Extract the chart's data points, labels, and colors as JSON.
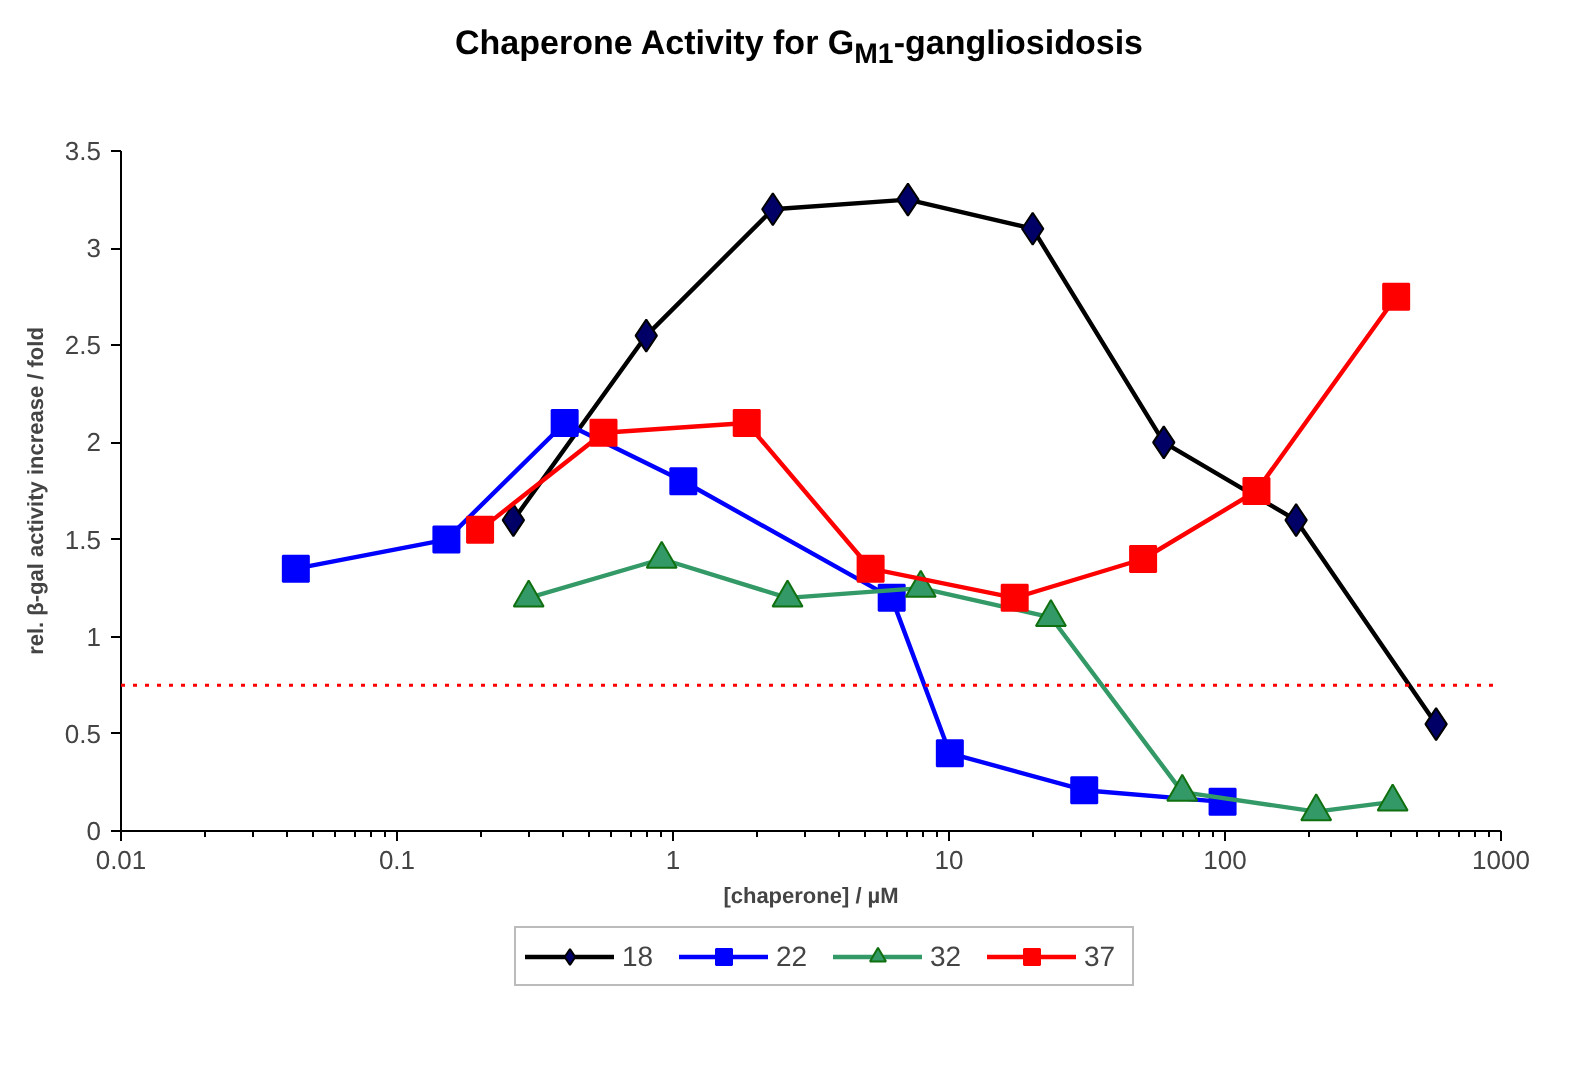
{
  "chart_data": {
    "type": "line",
    "title": "Chaperone Activity for G$_{M1}$-gangliosidosis",
    "xlabel": "[chaperone] / µM",
    "ylabel": "rel. β-gal activity increase / fold",
    "log": "x",
    "xlim": [
      0.01,
      1000
    ],
    "xticks": [
      0.01,
      0.1,
      1,
      10,
      100,
      1000
    ],
    "ylim": [
      0,
      3.5
    ],
    "yticks": [
      0,
      0.5,
      1,
      1.5,
      2,
      2.5,
      3,
      3.5
    ],
    "grid": false,
    "legend": "bottom",
    "line_style": "solid",
    "series": [
      {
        "name": "18",
        "color": "#000000",
        "marker": "diamond",
        "x": [
          0.264,
          0.8,
          2.3,
          7.1,
          20.1,
          60,
          181,
          582
        ],
        "values": [
          1.6,
          2.55,
          3.2,
          3.25,
          3.1,
          2.0,
          1.6,
          0.55
        ]
      },
      {
        "name": "22",
        "color": "#0000ff",
        "marker": "square",
        "x": [
          0.043,
          0.151,
          0.405,
          1.09,
          6.2,
          10.07,
          30.9,
          98
        ],
        "values": [
          1.35,
          1.5,
          2.1,
          1.8,
          1.2,
          0.4,
          0.21,
          0.15
        ]
      },
      {
        "name": "32",
        "color": "#339966",
        "marker": "triangle",
        "x": [
          0.3,
          0.91,
          2.6,
          7.9,
          23.4,
          70,
          214,
          405
        ],
        "values": [
          1.2,
          1.4,
          1.2,
          1.25,
          1.1,
          0.2,
          0.1,
          0.15
        ]
      },
      {
        "name": "37",
        "color": "#ff0000",
        "marker": "square",
        "x": [
          0.2,
          0.56,
          1.85,
          5.2,
          17.3,
          50.5,
          130,
          417
        ],
        "values": [
          1.55,
          2.05,
          2.1,
          1.35,
          1.2,
          1.4,
          1.75,
          2.75
        ]
      }
    ],
    "ref_lines": [
      {
        "axis": "y",
        "value": 0.75,
        "color": "#ff0000",
        "line_style": "dotted"
      }
    ]
  }
}
